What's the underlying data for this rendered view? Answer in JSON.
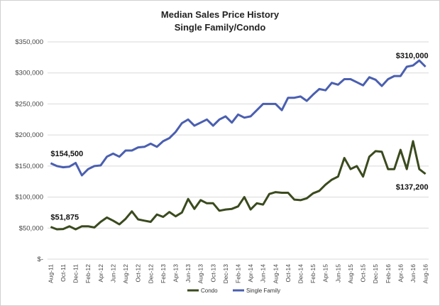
{
  "chart_data": {
    "type": "line",
    "title": "Median Sales Price History",
    "subtitle": "Single Family/Condo",
    "xlabel": "",
    "ylabel": "",
    "ylim": [
      0,
      350000
    ],
    "y_ticks": [
      0,
      50000,
      100000,
      150000,
      200000,
      250000,
      300000,
      350000
    ],
    "y_tick_labels": [
      "$-",
      "$50,000",
      "$100,000",
      "$150,000",
      "$200,000",
      "$250,000",
      "$300,000",
      "$350,000"
    ],
    "grid": true,
    "legend_position": "bottom",
    "months": [
      "Aug-11",
      "Sep-11",
      "Oct-11",
      "Nov-11",
      "Dec-11",
      "Jan-12",
      "Feb-12",
      "Mar-12",
      "Apr-12",
      "May-12",
      "Jun-12",
      "Jul-12",
      "Aug-12",
      "Sep-12",
      "Oct-12",
      "Nov-12",
      "Dec-12",
      "Jan-13",
      "Feb-13",
      "Mar-13",
      "Apr-13",
      "May-13",
      "Jun-13",
      "Jul-13",
      "Aug-13",
      "Sep-13",
      "Oct-13",
      "Nov-13",
      "Dec-13",
      "Jan-14",
      "Feb-14",
      "Mar-14",
      "Apr-14",
      "May-14",
      "Jun-14",
      "Jul-14",
      "Aug-14",
      "Sep-14",
      "Oct-14",
      "Nov-14",
      "Dec-14",
      "Jan-15",
      "Feb-15",
      "Mar-15",
      "Apr-15",
      "May-15",
      "Jun-15",
      "Jul-15",
      "Aug-15",
      "Sep-15",
      "Oct-15",
      "Nov-15",
      "Dec-15",
      "Jan-16",
      "Feb-16",
      "Mar-16",
      "Apr-16",
      "May-16",
      "Jun-16",
      "Jul-16",
      "Aug-16"
    ],
    "x_tick_labels": [
      "Aug-11",
      "Oct-11",
      "Dec-11",
      "Feb-12",
      "Apr-12",
      "Jun-12",
      "Aug-12",
      "Oct-12",
      "Dec-12",
      "Feb-13",
      "Apr-13",
      "Jun-13",
      "Aug-13",
      "Oct-13",
      "Dec-13",
      "Feb-14",
      "Apr-14",
      "Jun-14",
      "Aug-14",
      "Oct-14",
      "Dec-14",
      "Feb-15",
      "Apr-15",
      "Jun-15",
      "Aug-15",
      "Oct-15",
      "Dec-15",
      "Feb-16",
      "Apr-16",
      "Jun-16",
      "Aug-16"
    ],
    "series": [
      {
        "name": "Condo",
        "color": "#3a4a1e",
        "values": [
          51875,
          48000,
          48500,
          53000,
          48000,
          53000,
          53000,
          51000,
          60000,
          67000,
          62000,
          56000,
          65000,
          77000,
          64000,
          62000,
          60000,
          72000,
          68000,
          76000,
          69000,
          75000,
          97000,
          81000,
          95000,
          90000,
          90000,
          78000,
          80000,
          81000,
          85000,
          100000,
          80000,
          90000,
          88000,
          105000,
          108000,
          107000,
          107000,
          96000,
          95000,
          98000,
          106000,
          110000,
          120000,
          128000,
          133000,
          163000,
          145000,
          150000,
          133000,
          165000,
          174000,
          173000,
          145000,
          145000,
          176000,
          145000,
          190000,
          145000,
          137200
        ]
      },
      {
        "name": "Single Family",
        "color": "#4a5fb0",
        "values": [
          154500,
          150000,
          148000,
          149000,
          155000,
          135000,
          145000,
          150000,
          151000,
          165000,
          170000,
          165000,
          175000,
          175000,
          180000,
          181000,
          186000,
          181000,
          190000,
          195000,
          205000,
          219000,
          225000,
          215000,
          220000,
          225000,
          215000,
          225000,
          230000,
          220000,
          233000,
          228000,
          230000,
          240000,
          250000,
          250000,
          250000,
          240000,
          260000,
          260000,
          262000,
          255000,
          265000,
          274000,
          272000,
          284000,
          281000,
          290000,
          290000,
          285000,
          280000,
          293000,
          289000,
          279000,
          290000,
          295000,
          295000,
          310000,
          312000,
          320000,
          310000
        ]
      }
    ],
    "annotations": [
      {
        "series": "Single Family",
        "month": "Aug-11",
        "label": "$154,500"
      },
      {
        "series": "Condo",
        "month": "Aug-11",
        "label": "$51,875"
      },
      {
        "series": "Single Family",
        "month": "Aug-16",
        "label": "$310,000"
      },
      {
        "series": "Condo",
        "month": "Aug-16",
        "label": "$137,200"
      }
    ]
  }
}
